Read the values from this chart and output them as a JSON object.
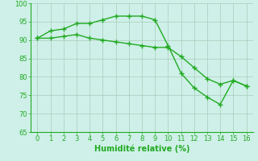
{
  "line1_x": [
    0,
    1,
    2,
    3,
    4,
    5,
    6,
    7,
    8,
    9,
    10,
    11,
    12,
    13,
    14,
    15,
    16
  ],
  "line1_y": [
    90.5,
    92.5,
    93.0,
    94.5,
    94.5,
    95.5,
    96.5,
    96.5,
    96.5,
    95.5,
    88.5,
    81.0,
    77.0,
    74.5,
    72.5,
    79.0,
    77.5
  ],
  "line2_x": [
    0,
    1,
    2,
    3,
    4,
    5,
    6,
    7,
    8,
    9,
    10,
    11,
    12,
    13,
    14,
    15,
    16
  ],
  "line2_y": [
    90.5,
    90.5,
    91.0,
    91.5,
    90.5,
    90.0,
    89.5,
    89.0,
    88.5,
    88.0,
    88.0,
    85.5,
    82.5,
    79.5,
    78.0,
    79.0,
    77.5
  ],
  "line_color": "#22aa22",
  "bg_color": "#cef0e8",
  "grid_color": "#aaccbb",
  "xlabel": "Humidité relative (%)",
  "xlim": [
    -0.5,
    16.5
  ],
  "ylim": [
    65,
    100
  ],
  "yticks": [
    65,
    70,
    75,
    80,
    85,
    90,
    95,
    100
  ],
  "xticks": [
    0,
    1,
    2,
    3,
    4,
    5,
    6,
    7,
    8,
    9,
    10,
    11,
    12,
    13,
    14,
    15,
    16
  ],
  "marker": "+",
  "markersize": 4,
  "linewidth": 1.0,
  "xlabel_color": "#22aa22",
  "xlabel_fontsize": 7,
  "tick_color": "#22aa22",
  "tick_fontsize": 6
}
